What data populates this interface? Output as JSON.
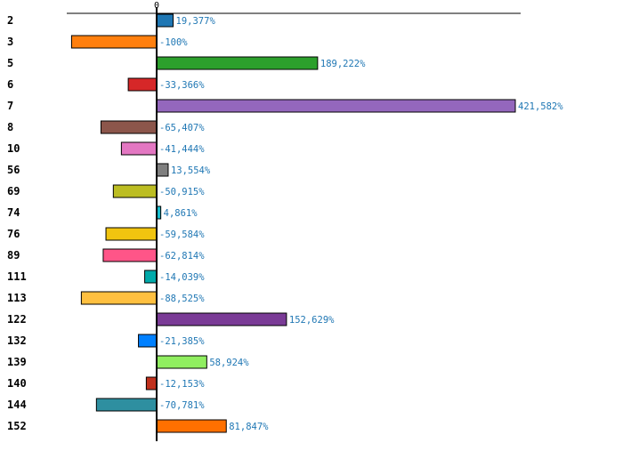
{
  "chart_data": {
    "type": "bar",
    "orientation": "horizontal",
    "title": "",
    "xlabel": "",
    "ylabel": "",
    "zero_tick_label": "0",
    "unit": "%",
    "categories": [
      "2",
      "3",
      "5",
      "6",
      "7",
      "8",
      "10",
      "56",
      "69",
      "74",
      "76",
      "89",
      "111",
      "113",
      "122",
      "132",
      "139",
      "140",
      "144",
      "152"
    ],
    "values": [
      19.377,
      -100,
      189.222,
      -33.366,
      421.582,
      -65.407,
      -41.444,
      13.554,
      -50.915,
      4.861,
      -59.584,
      -62.814,
      -14.039,
      -88.525,
      152.629,
      -21.385,
      58.924,
      -12.153,
      -70.781,
      81.847
    ],
    "value_labels": [
      "19,377%",
      "-100%",
      "189,222%",
      "-33,366%",
      "421,582%",
      "-65,407%",
      "-41,444%",
      "13,554%",
      "-50,915%",
      "4,861%",
      "-59,584%",
      "-62,814%",
      "-14,039%",
      "-88,525%",
      "152,629%",
      "-21,385%",
      "58,924%",
      "-12,153%",
      "-70,781%",
      "81,847%"
    ],
    "colors": [
      "#1f77b4",
      "#ff7f0e",
      "#2ca02c",
      "#d62728",
      "#9467bd",
      "#8c564b",
      "#e377c2",
      "#7f7f7f",
      "#bcbd22",
      "#17becf",
      "#f1c40f",
      "#ff5588",
      "#00aaaa",
      "#ffc040",
      "#7a3b96",
      "#0080ff",
      "#90ee60",
      "#c0301c",
      "#2e8fa0",
      "#ff7000"
    ],
    "xlim": [
      -105,
      430
    ],
    "grid": false,
    "legend": "none"
  }
}
